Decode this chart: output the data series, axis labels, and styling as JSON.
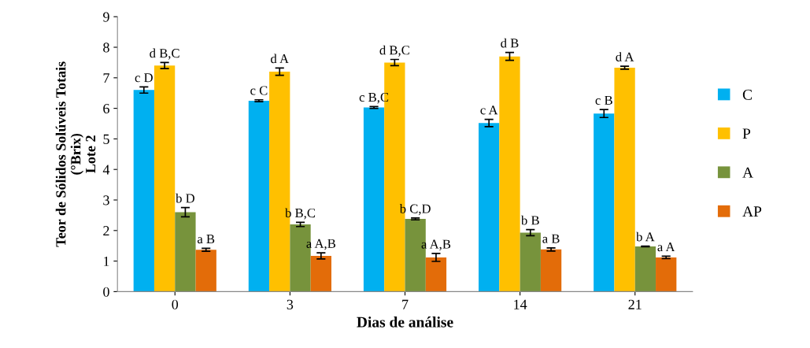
{
  "chart_data": {
    "type": "bar",
    "xlabel": "Dias de análise",
    "ylabel": "Teor de Sólidos Solúveis Totais\n(°Brix)\nLote 2",
    "categories": [
      "0",
      "3",
      "7",
      "14",
      "21"
    ],
    "series": [
      {
        "name": "C",
        "color": "#00b0f0",
        "values": [
          6.6,
          6.25,
          6.03,
          5.52,
          5.83
        ],
        "errors": [
          0.1,
          0.03,
          0.03,
          0.12,
          0.13
        ],
        "value_labels": [
          "c D",
          "c C",
          "c B,C",
          "c A",
          "c B"
        ]
      },
      {
        "name": "P",
        "color": "#ffc000",
        "values": [
          7.4,
          7.2,
          7.5,
          7.7,
          7.33
        ],
        "errors": [
          0.1,
          0.12,
          0.1,
          0.13,
          0.05
        ],
        "value_labels": [
          "d B,C",
          "d A",
          "d B,C",
          "d B",
          "d A"
        ]
      },
      {
        "name": "A",
        "color": "#77933c",
        "values": [
          2.6,
          2.2,
          2.38,
          1.93,
          1.48
        ],
        "errors": [
          0.15,
          0.07,
          0.03,
          0.1,
          0.01
        ],
        "value_labels": [
          "b D",
          "b B,C",
          "b C,D",
          "b B",
          "b A"
        ]
      },
      {
        "name": "AP",
        "color": "#e36c09",
        "values": [
          1.37,
          1.17,
          1.12,
          1.38,
          1.12
        ],
        "errors": [
          0.05,
          0.1,
          0.13,
          0.05,
          0.04
        ],
        "value_labels": [
          "a B",
          "a A,B",
          "a A,B",
          "a B",
          "a A"
        ]
      }
    ],
    "ylim": [
      0,
      9
    ],
    "yticks": [
      0,
      1,
      2,
      3,
      4,
      5,
      6,
      7,
      8,
      9
    ],
    "grid": false,
    "legend": "right"
  }
}
